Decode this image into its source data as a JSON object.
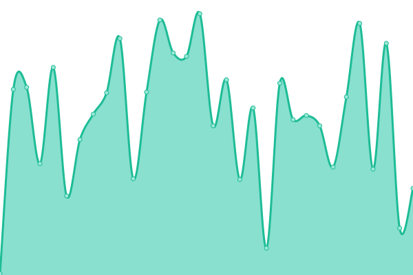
{
  "chart_data": {
    "type": "area",
    "title": "",
    "xlabel": "",
    "ylabel": "",
    "x": [
      0,
      1,
      2,
      3,
      4,
      5,
      6,
      7,
      8,
      9,
      10,
      11,
      12,
      13,
      14,
      15,
      16,
      17,
      18,
      19,
      20,
      21,
      22,
      23,
      24,
      25,
      26,
      27,
      28,
      29,
      30,
      31
    ],
    "values": [
      2,
      270,
      273,
      162,
      302,
      115,
      197,
      234,
      265,
      344,
      140,
      266,
      371,
      323,
      318,
      380,
      217,
      284,
      139,
      243,
      39,
      279,
      226,
      232,
      217,
      157,
      259,
      366,
      154,
      337,
      68,
      126
    ],
    "ylim": [
      0,
      400
    ],
    "grid": false,
    "legend": "none",
    "colors": {
      "fill": "#89e0cf",
      "line": "#1dbc96",
      "point_fill": "#9be8d6"
    }
  }
}
